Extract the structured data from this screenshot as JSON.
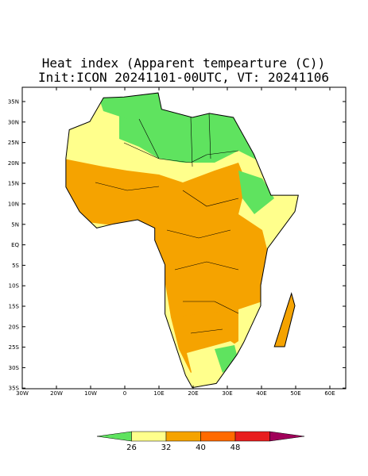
{
  "title": "Heat index (Apparent tempearture (C))",
  "subtitle": "Init:ICON 20241101-00UTC, VT: 20241106",
  "lat_labels": [
    "35N",
    "30N",
    "25N",
    "20N",
    "15N",
    "10N",
    "5N",
    "EQ",
    "5S",
    "10S",
    "15S",
    "20S",
    "25S",
    "30S",
    "35S"
  ],
  "lon_labels": [
    "30W",
    "20W",
    "10W",
    "0",
    "10E",
    "20E",
    "30E",
    "40E",
    "50E",
    "60E"
  ],
  "colorbar": {
    "levels": [
      26,
      32,
      40,
      48
    ],
    "colors": [
      "#5fe35f",
      "#ffff8c",
      "#f5a300",
      "#ff6a00",
      "#e81e1e",
      "#a0005a"
    ]
  }
}
